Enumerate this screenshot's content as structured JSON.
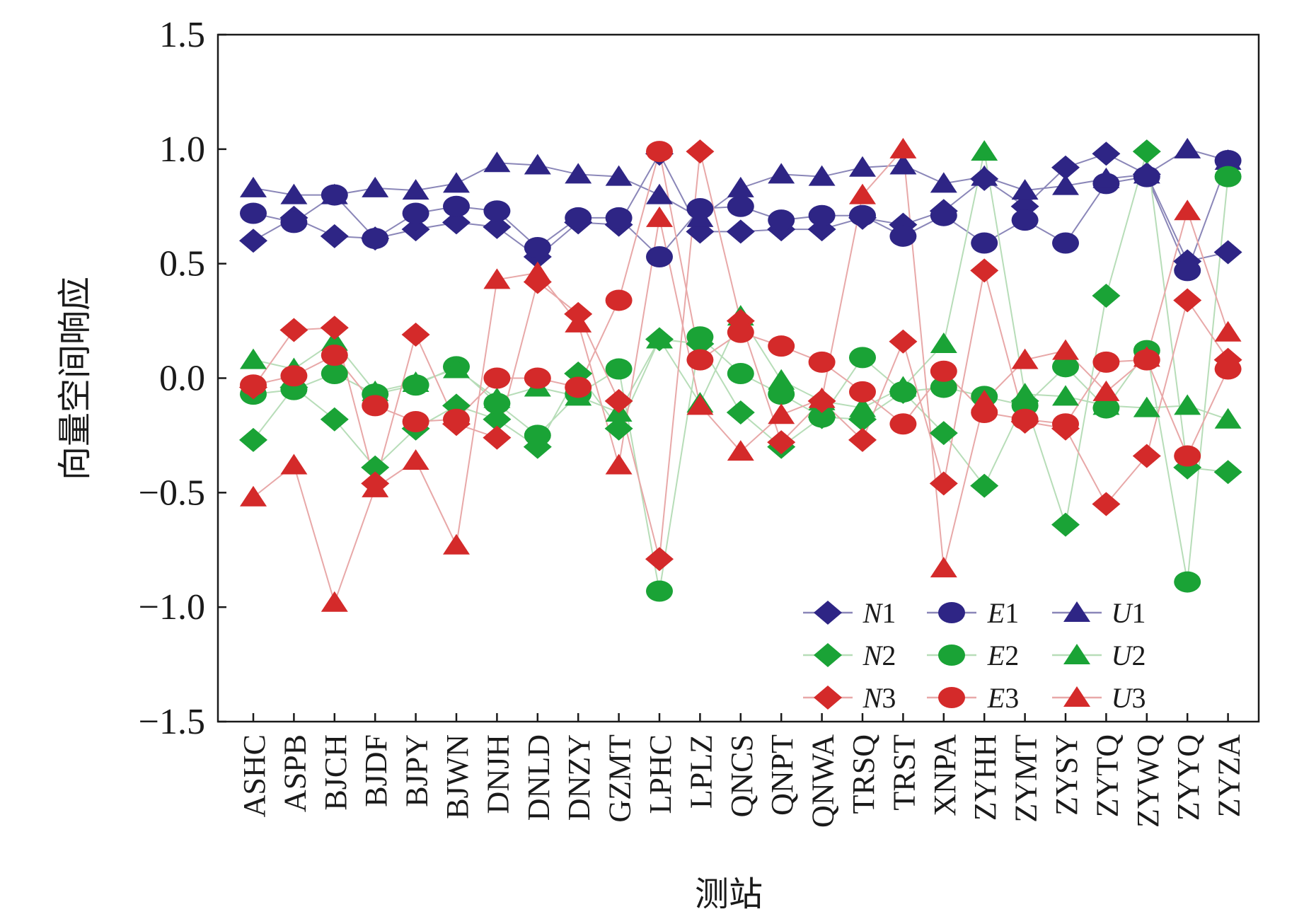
{
  "chart_data": {
    "type": "line",
    "title": "",
    "xlabel": "测站",
    "ylabel": "向量空间响应",
    "ylim": [
      -1.5,
      1.5
    ],
    "yticks": [
      1.5,
      1.0,
      0.5,
      0.0,
      -0.5,
      -1.0,
      -1.5
    ],
    "ytick_labels": [
      "1.5",
      "1.0",
      "0.5",
      "0.0",
      "−0.5",
      "−1.0",
      "−1.5"
    ],
    "grid": false,
    "legend_position": "bottom-right",
    "categories": [
      "ASHC",
      "ASPB",
      "BJCH",
      "BJDF",
      "BJPY",
      "BJWN",
      "DNJH",
      "DNLD",
      "DNZY",
      "GZMT",
      "LPHC",
      "LPLZ",
      "QNCS",
      "QNPT",
      "QNWA",
      "TRSQ",
      "TRST",
      "XNPA",
      "ZYHH",
      "ZYMT",
      "ZYSY",
      "ZYTQ",
      "ZYWQ",
      "ZYYQ",
      "ZYZA"
    ],
    "series": [
      {
        "name": "N1",
        "label_base": "N",
        "label_num": "1",
        "marker": "diamond",
        "color": "#2e2585",
        "line_color": "#8a86b8",
        "values": [
          0.6,
          0.7,
          0.62,
          0.61,
          0.65,
          0.68,
          0.66,
          0.53,
          0.68,
          0.67,
          0.98,
          0.64,
          0.64,
          0.65,
          0.65,
          0.7,
          0.67,
          0.73,
          0.87,
          0.75,
          0.92,
          0.98,
          0.89,
          0.51,
          0.55
        ]
      },
      {
        "name": "E1",
        "label_base": "E",
        "label_num": "1",
        "marker": "circle",
        "color": "#2e2585",
        "line_color": "#8a86b8",
        "values": [
          0.72,
          0.68,
          0.8,
          0.61,
          0.72,
          0.75,
          0.73,
          0.57,
          0.7,
          0.7,
          0.53,
          0.74,
          0.75,
          0.69,
          0.71,
          0.71,
          0.62,
          0.71,
          0.59,
          0.69,
          0.59,
          0.85,
          0.88,
          0.47,
          0.95
        ]
      },
      {
        "name": "U1",
        "label_base": "U",
        "label_num": "1",
        "marker": "triangle",
        "color": "#2e2585",
        "line_color": "#8a86b8",
        "values": [
          0.83,
          0.8,
          0.8,
          0.83,
          0.82,
          0.85,
          0.94,
          0.93,
          0.89,
          0.88,
          0.8,
          0.7,
          0.83,
          0.89,
          0.88,
          0.92,
          0.93,
          0.85,
          0.88,
          0.82,
          0.84,
          0.87,
          0.89,
          1.0,
          0.95
        ]
      },
      {
        "name": "N2",
        "label_base": "N",
        "label_num": "2",
        "marker": "diamond",
        "color": "#1aa336",
        "line_color": "#b7ddb8",
        "values": [
          -0.27,
          -0.04,
          -0.18,
          -0.39,
          -0.22,
          -0.12,
          -0.18,
          -0.3,
          0.02,
          -0.22,
          0.17,
          0.15,
          -0.15,
          -0.3,
          -0.17,
          -0.18,
          -0.06,
          -0.24,
          -0.47,
          -0.1,
          -0.64,
          0.36,
          0.99,
          -0.39,
          -0.41
        ]
      },
      {
        "name": "E2",
        "label_base": "E",
        "label_num": "2",
        "marker": "circle",
        "color": "#1aa336",
        "line_color": "#b7ddb8",
        "values": [
          -0.07,
          -0.05,
          0.02,
          -0.07,
          -0.03,
          0.05,
          -0.11,
          -0.25,
          -0.07,
          0.04,
          -0.93,
          0.18,
          0.02,
          -0.07,
          -0.17,
          0.09,
          -0.06,
          -0.04,
          -0.08,
          -0.12,
          0.05,
          -0.13,
          0.12,
          -0.89,
          0.88
        ]
      },
      {
        "name": "U2",
        "label_base": "U",
        "label_num": "2",
        "marker": "triangle",
        "color": "#1aa336",
        "line_color": "#b7ddb8",
        "values": [
          0.08,
          0.04,
          0.16,
          -0.06,
          -0.02,
          0.04,
          -0.09,
          -0.04,
          -0.08,
          -0.15,
          0.17,
          -0.11,
          0.27,
          -0.01,
          -0.1,
          -0.13,
          -0.04,
          0.15,
          0.99,
          -0.07,
          -0.08,
          -0.12,
          -0.13,
          -0.12,
          -0.18
        ]
      },
      {
        "name": "N3",
        "label_base": "N",
        "label_num": "3",
        "marker": "diamond",
        "color": "#d42a2a",
        "line_color": "#e8a8a8",
        "values": [
          -0.04,
          0.21,
          0.22,
          -0.46,
          0.19,
          -0.2,
          -0.26,
          0.42,
          0.28,
          -0.1,
          -0.79,
          0.99,
          0.25,
          -0.28,
          -0.1,
          -0.27,
          0.16,
          -0.46,
          0.47,
          -0.19,
          -0.22,
          -0.55,
          -0.34,
          0.34,
          0.08
        ]
      },
      {
        "name": "E3",
        "label_base": "E",
        "label_num": "3",
        "marker": "circle",
        "color": "#d42a2a",
        "line_color": "#e8a8a8",
        "values": [
          -0.03,
          0.01,
          0.1,
          -0.12,
          -0.19,
          -0.18,
          0.0,
          0.0,
          -0.04,
          0.34,
          0.99,
          0.08,
          0.2,
          0.14,
          0.07,
          -0.06,
          -0.2,
          0.03,
          -0.15,
          -0.18,
          -0.2,
          0.07,
          0.08,
          -0.34,
          0.04
        ]
      },
      {
        "name": "U3",
        "label_base": "U",
        "label_num": "3",
        "marker": "triangle",
        "color": "#d42a2a",
        "line_color": "#e8a8a8",
        "values": [
          -0.52,
          -0.38,
          -0.98,
          -0.48,
          -0.36,
          -0.73,
          0.43,
          0.46,
          0.24,
          -0.38,
          0.7,
          -0.12,
          -0.32,
          -0.16,
          -0.09,
          0.8,
          1.0,
          -0.83,
          -0.1,
          0.08,
          0.12,
          -0.06,
          0.09,
          0.73,
          0.2
        ]
      }
    ]
  }
}
